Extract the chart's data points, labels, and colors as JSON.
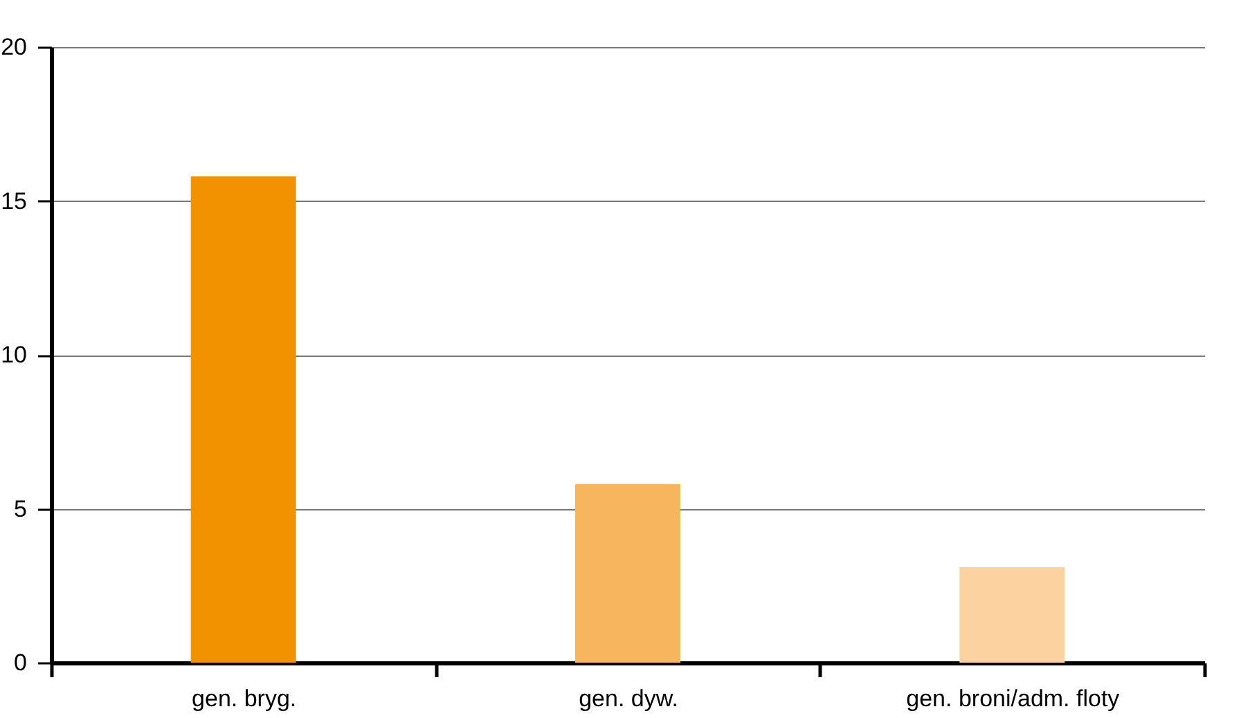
{
  "chart_data": {
    "type": "bar",
    "categories": [
      "gen. bryg.",
      "gen. dyw.",
      "gen. broni/adm. floty"
    ],
    "values": [
      15.8,
      5.8,
      3.1
    ],
    "colors": [
      "#f39200",
      "#f7b55e",
      "#fcd3a0"
    ],
    "ylim": [
      0,
      20
    ],
    "yticks": [
      0,
      5,
      10,
      15,
      20
    ],
    "grid": "y",
    "legend": false
  }
}
